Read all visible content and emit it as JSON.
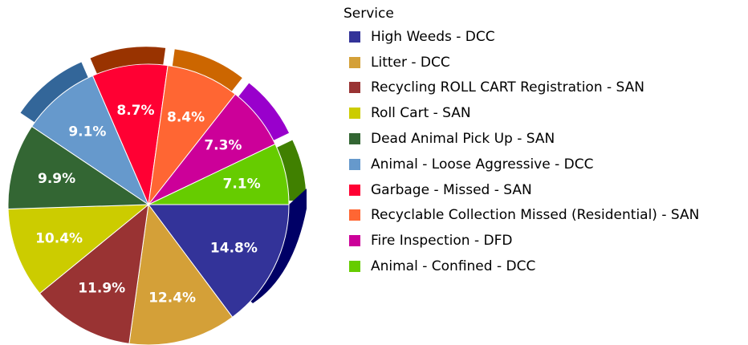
{
  "chart_data": {
    "type": "pie",
    "legend_title": "Service",
    "legend_position": "right",
    "slices": [
      {
        "label": "High Weeds - DCC",
        "value": 14.8,
        "value_label": "14.8%",
        "color": "#333399"
      },
      {
        "label": "Litter -  DCC",
        "value": 12.4,
        "value_label": "12.4%",
        "color": "#D4A038"
      },
      {
        "label": "Recycling ROLL CART Registration - SAN",
        "value": 11.9,
        "value_label": "11.9%",
        "color": "#993333"
      },
      {
        "label": "Roll Cart - SAN",
        "value": 10.4,
        "value_label": "10.4%",
        "color": "#CCCC00"
      },
      {
        "label": "Dead Animal Pick Up - SAN",
        "value": 9.9,
        "value_label": "9.9%",
        "color": "#336633"
      },
      {
        "label": "Animal - Loose Aggressive - DCC",
        "value": 9.1,
        "value_label": "9.1%",
        "color": "#6699CC"
      },
      {
        "label": "Garbage - Missed - SAN",
        "value": 8.7,
        "value_label": "8.7%",
        "color": "#FF0033"
      },
      {
        "label": "Recyclable Collection Missed (Residential) - SAN",
        "value": 8.4,
        "value_label": "8.4%",
        "color": "#FF6633"
      },
      {
        "label": "Fire Inspection - DFD",
        "value": 7.3,
        "value_label": "7.3%",
        "color": "#CC0099"
      },
      {
        "label": "Animal - Confined - DCC",
        "value": 7.1,
        "value_label": "7.1%",
        "color": "#66CC00"
      }
    ],
    "back_slices": [
      {
        "value": 7.1,
        "color": "#408000"
      },
      {
        "value": 7.3,
        "color": "#9900CC"
      },
      {
        "value": 8.4,
        "color": "#CC6600"
      },
      {
        "value": 8.7,
        "color": "#993300"
      },
      {
        "value": 9.1,
        "color": "#336699"
      }
    ]
  }
}
